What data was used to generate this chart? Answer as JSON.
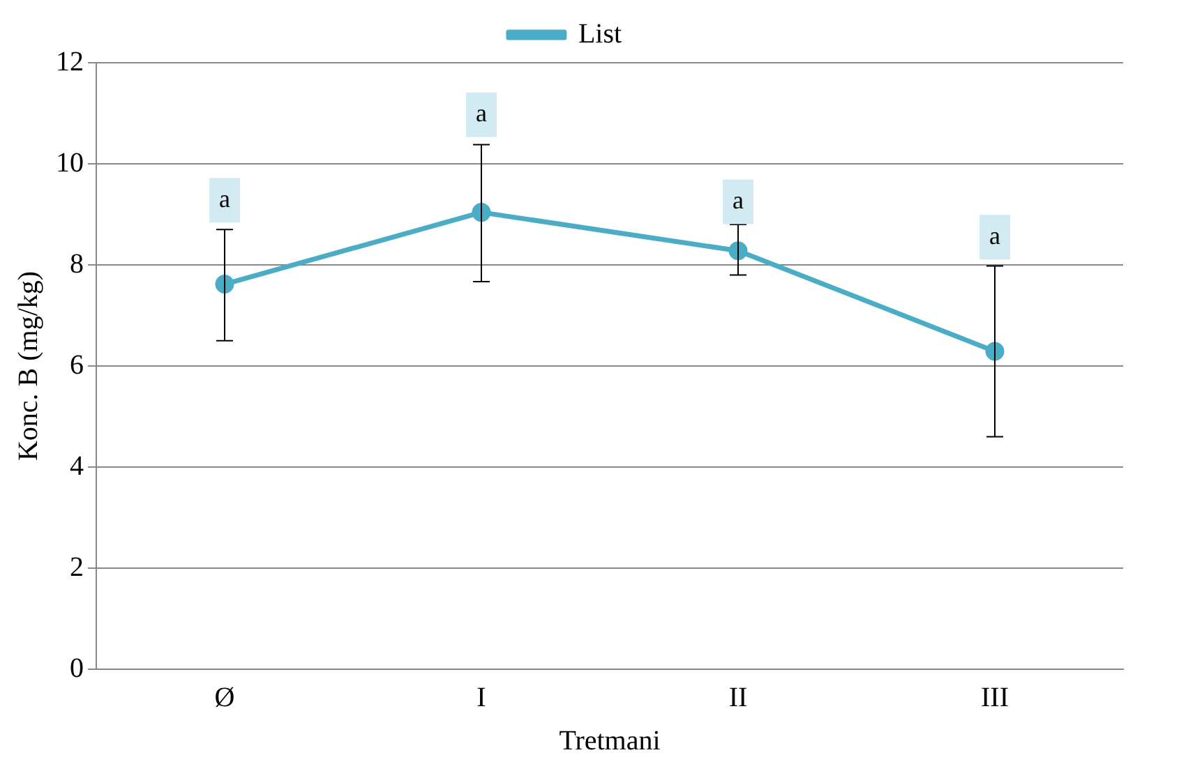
{
  "chart_data": {
    "type": "line",
    "xlabel": "Tretmani",
    "ylabel": "Konc. B (mg/kg)",
    "categories": [
      "Ø",
      "I",
      "II",
      "III"
    ],
    "series": [
      {
        "name": "List",
        "color": "#4bacc6",
        "values": [
          7.62,
          9.04,
          8.28,
          6.29
        ],
        "errors": [
          [
            6.5,
            8.7
          ],
          [
            7.67,
            10.38
          ],
          [
            7.8,
            8.8
          ],
          [
            4.6,
            7.98
          ]
        ]
      }
    ],
    "ylim": [
      0,
      12
    ],
    "yticks": [
      0,
      2,
      4,
      6,
      8,
      10,
      12
    ],
    "grid": "y",
    "legend": "top",
    "marker": "circle",
    "line_style": "solid",
    "annotations": [
      {
        "text": "a",
        "x": "Ø",
        "y": 9.28
      },
      {
        "text": "a",
        "x": "I",
        "y": 10.97
      },
      {
        "text": "a",
        "x": "II",
        "y": 9.25
      },
      {
        "text": "a",
        "x": "III",
        "y": 8.55
      }
    ]
  }
}
